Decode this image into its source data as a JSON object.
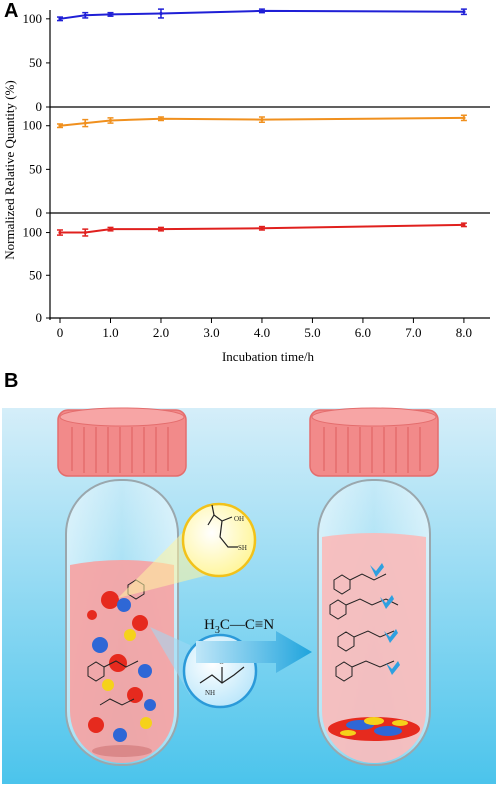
{
  "panels": {
    "a_label": "A",
    "b_label": "B"
  },
  "chart_data": {
    "type": "line",
    "ylabel": "Normalized Relative Quantity (%)",
    "xlabel": "Incubation time/h",
    "x_ticks": [
      "0",
      "1.0",
      "2.0",
      "3.0",
      "4.0",
      "5.0",
      "6.0",
      "7.0",
      "8.0"
    ],
    "xlim": [
      0,
      8.2
    ],
    "subplots": [
      {
        "ylim": [
          0,
          110
        ],
        "y_ticks": [
          "0",
          "50",
          "100"
        ],
        "series": [
          {
            "color": "#1f1fd6",
            "x": [
              0,
              0.5,
              1,
              2,
              4,
              8
            ],
            "y": [
              100,
              104,
              105,
              106,
              109,
              108
            ],
            "err": [
              2,
              3,
              2,
              5,
              2,
              3
            ]
          }
        ]
      },
      {
        "ylim": [
          0,
          110
        ],
        "y_ticks": [
          "0",
          "50",
          "100"
        ],
        "series": [
          {
            "color": "#f0901e",
            "x": [
              0,
              0.5,
              1,
              2,
              4,
              8
            ],
            "y": [
              100,
              103,
              106,
              108,
              107,
              109
            ],
            "err": [
              2,
              4,
              3,
              2,
              3,
              3
            ]
          }
        ]
      },
      {
        "ylim": [
          0,
          110
        ],
        "y_ticks": [
          "0",
          "50",
          "100"
        ],
        "series": [
          {
            "color": "#e0201e",
            "x": [
              0,
              0.5,
              1,
              2,
              4,
              8
            ],
            "y": [
              100,
              100,
              104,
              104,
              105,
              109
            ],
            "err": [
              3,
              4,
              2,
              2,
              2,
              2
            ]
          }
        ]
      }
    ]
  },
  "scheme": {
    "formula_h": "H",
    "formula_sub": "3",
    "formula_rest": "C—C≡N",
    "glass_bg_top": "#d5eef9",
    "glass_bg_bottom": "#4bc4ec",
    "cap_color": "#f28a8a",
    "liquid_color": "#f6a3a3",
    "arrow_color": "#1fa4dd",
    "yellow_bubble": "#fff6a0",
    "blue_bubble": "#bfe8fb"
  }
}
